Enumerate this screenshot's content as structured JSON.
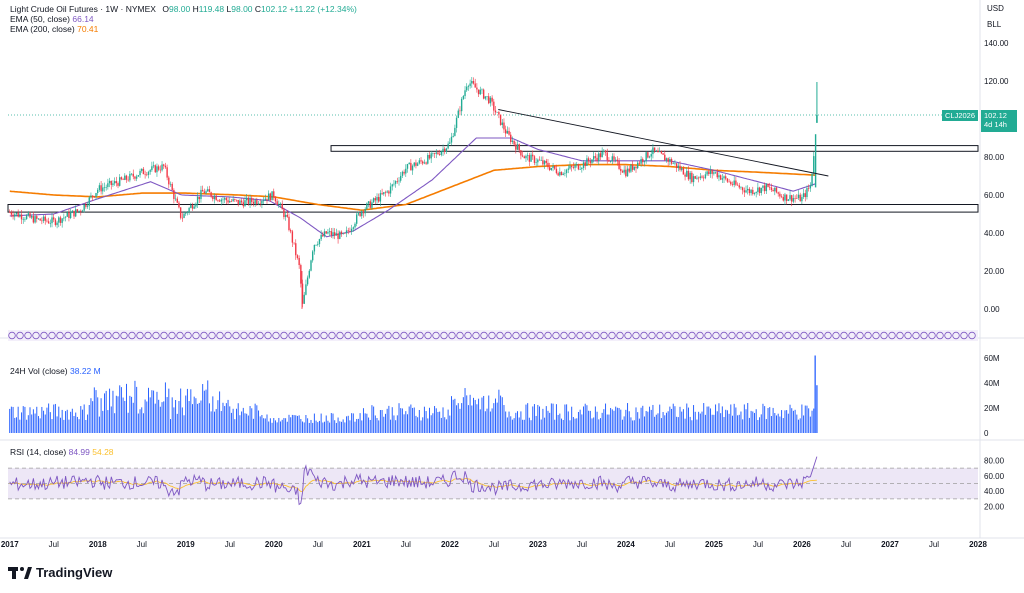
{
  "header": {
    "symbol_title": "Light Crude Oil Futures · 1W · NYMEX",
    "ohlc": {
      "o_label": "O",
      "o": "98.00",
      "h_label": "H",
      "h": "119.48",
      "l_label": "L",
      "l": "98.00",
      "c_label": "C",
      "c": "102.12",
      "change": "+11.22 (+12.34%)"
    },
    "ema50_label": "EMA (50, close)",
    "ema50_value": "66.14",
    "ema200_label": "EMA (200, close)",
    "ema200_value": "70.41",
    "currency": "USD",
    "unit": "BLL"
  },
  "price_tag": {
    "symbol": "CLJ2026",
    "price": "102.12",
    "countdown": "4d 14h"
  },
  "volume": {
    "label": "24H Vol (close)",
    "value": "38.22 M",
    "ticks": [
      "60M",
      "40M",
      "20M",
      "0"
    ]
  },
  "rsi": {
    "label": "RSI (14, close)",
    "value": "84.99",
    "ma_value": "54.28",
    "ticks": [
      "80.00",
      "60.00",
      "40.00",
      "20.00"
    ]
  },
  "price_ticks": [
    "140.00",
    "120.00",
    "100.00",
    "80.00",
    "60.00",
    "40.00",
    "20.00",
    "0.00"
  ],
  "x_ticks": [
    "2017",
    "Jul",
    "2018",
    "Jul",
    "2019",
    "Jul",
    "2020",
    "Jul",
    "2021",
    "Jul",
    "2022",
    "Jul",
    "2023",
    "Jul",
    "2024",
    "Jul",
    "2025",
    "Jul",
    "2026",
    "Jul",
    "2027",
    "Jul",
    "2028"
  ],
  "brand": "TradingView",
  "colors": {
    "up": "#22ab94",
    "down": "#f23645",
    "ema50": "#7e57c2",
    "ema200": "#f57c00",
    "volume": "#2962ff",
    "rsi": "#7e57c2",
    "rsi_ma": "#fbc02d",
    "rsi_band": "#ede7f6",
    "event": "#7e57c2"
  },
  "chart_data": {
    "type": "candlestick",
    "price_ylim": [
      0,
      140
    ],
    "x_range": [
      "2017",
      "2028"
    ],
    "close_path": [
      [
        2017.0,
        51
      ],
      [
        2017.3,
        47
      ],
      [
        2017.5,
        46
      ],
      [
        2017.8,
        52
      ],
      [
        2018.0,
        63
      ],
      [
        2018.3,
        68
      ],
      [
        2018.5,
        72
      ],
      [
        2018.75,
        75
      ],
      [
        2018.95,
        48
      ],
      [
        2019.2,
        62
      ],
      [
        2019.4,
        58
      ],
      [
        2019.6,
        56
      ],
      [
        2019.8,
        57
      ],
      [
        2020.0,
        60
      ],
      [
        2020.15,
        47
      ],
      [
        2020.3,
        20
      ],
      [
        2020.32,
        0
      ],
      [
        2020.45,
        34
      ],
      [
        2020.6,
        40
      ],
      [
        2020.8,
        38
      ],
      [
        2021.0,
        52
      ],
      [
        2021.3,
        62
      ],
      [
        2021.5,
        74
      ],
      [
        2021.8,
        80
      ],
      [
        2022.0,
        87
      ],
      [
        2022.2,
        120
      ],
      [
        2022.45,
        110
      ],
      [
        2022.65,
        92
      ],
      [
        2022.85,
        80
      ],
      [
        2023.0,
        78
      ],
      [
        2023.25,
        72
      ],
      [
        2023.5,
        76
      ],
      [
        2023.75,
        82
      ],
      [
        2024.0,
        72
      ],
      [
        2024.3,
        83
      ],
      [
        2024.5,
        78
      ],
      [
        2024.75,
        69
      ],
      [
        2025.0,
        72
      ],
      [
        2025.2,
        66
      ],
      [
        2025.4,
        62
      ],
      [
        2025.6,
        64
      ],
      [
        2025.8,
        59
      ],
      [
        2026.0,
        58
      ],
      [
        2026.1,
        65
      ],
      [
        2026.15,
        90
      ],
      [
        2026.17,
        102.12
      ]
    ],
    "ema50_path": [
      [
        2017.0,
        49
      ],
      [
        2017.5,
        50
      ],
      [
        2018.0,
        58
      ],
      [
        2018.6,
        67
      ],
      [
        2018.95,
        60
      ],
      [
        2019.5,
        59
      ],
      [
        2019.95,
        57
      ],
      [
        2020.3,
        48
      ],
      [
        2020.6,
        38
      ],
      [
        2020.9,
        41
      ],
      [
        2021.3,
        52
      ],
      [
        2021.8,
        68
      ],
      [
        2022.3,
        90
      ],
      [
        2022.7,
        90
      ],
      [
        2023.0,
        84
      ],
      [
        2023.5,
        78
      ],
      [
        2024.0,
        78
      ],
      [
        2024.5,
        78
      ],
      [
        2025.0,
        73
      ],
      [
        2025.5,
        67
      ],
      [
        2025.9,
        62
      ],
      [
        2026.17,
        66.14
      ]
    ],
    "ema200_path": [
      [
        2017.0,
        62
      ],
      [
        2017.5,
        60
      ],
      [
        2018.0,
        59
      ],
      [
        2018.5,
        61
      ],
      [
        2019.0,
        61
      ],
      [
        2019.6,
        60
      ],
      [
        2020.0,
        59
      ],
      [
        2020.5,
        55
      ],
      [
        2021.0,
        52
      ],
      [
        2021.5,
        55
      ],
      [
        2022.0,
        64
      ],
      [
        2022.5,
        73
      ],
      [
        2023.0,
        75
      ],
      [
        2023.5,
        76
      ],
      [
        2024.0,
        76
      ],
      [
        2024.5,
        75
      ],
      [
        2025.0,
        73
      ],
      [
        2025.5,
        72
      ],
      [
        2026.17,
        70.41
      ]
    ],
    "trendline": [
      [
        2022.55,
        105
      ],
      [
        2026.3,
        70
      ]
    ],
    "zones": [
      {
        "from": 83,
        "to": 86
      },
      {
        "from": 51,
        "to": 55
      }
    ],
    "volume_ylim": [
      0,
      60
    ],
    "volume_last": 38.22,
    "rsi_ylim": [
      0,
      100
    ],
    "rsi_band": [
      30,
      70
    ],
    "rsi_last": 84.99,
    "rsi_ma_last": 54.28
  }
}
